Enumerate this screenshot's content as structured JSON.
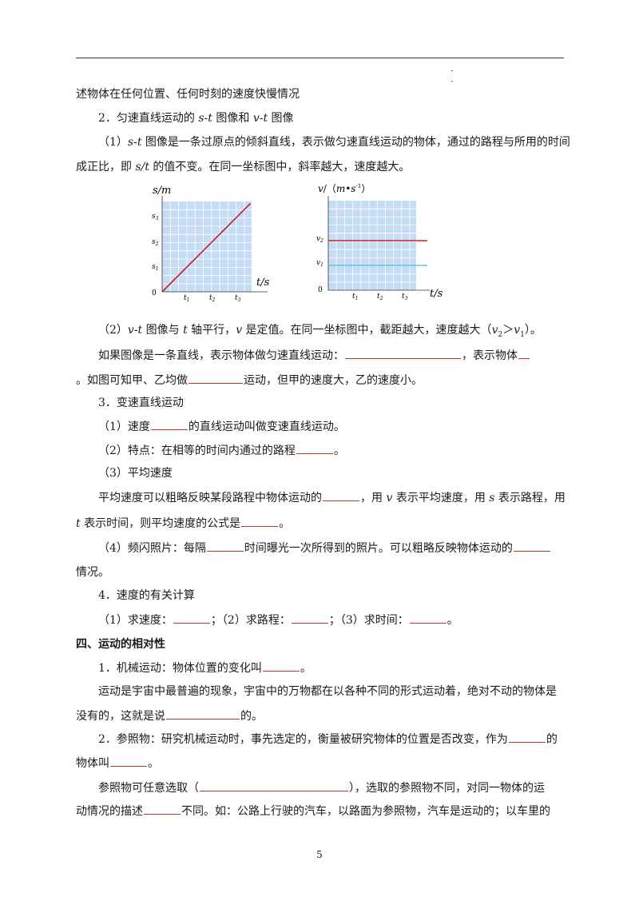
{
  "lines": {
    "l1": "述物体在任何位置、任何时刻的速度快慢情况",
    "l2a": "2．匀速直线运动的 ",
    "l2b": "s-t",
    "l2c": " 图像和 ",
    "l2d": "v-t",
    "l2e": " 图像",
    "l3a": "（1）",
    "l3b": "s-t",
    "l3c": " 图像是一条过原点的倾斜直线，表示做匀速直线运动的物体，通过的路程与所用的时间",
    "l4a": "成正比，即 ",
    "l4b": "s/t",
    "l4c": " 的值不变。在同一坐标图中，斜率越大，速度越大。",
    "l5a": "（2）",
    "l5b": "v-t",
    "l5c": " 图像与 ",
    "l5d": "t",
    "l5e": " 轴平行，",
    "l5f": "v",
    "l5g": " 是定值。在同一坐标图中，截距越大，速度越大（",
    "l5h": "v",
    "l5i": "2",
    "l5j": "＞",
    "l5k": "v",
    "l5l": "1",
    "l5m": "）。",
    "l6a": "如果图像是一条直线，表示物体做匀速直线运动：",
    "l6b": "，表示物体",
    "l7a": "。如图可知甲、乙均做",
    "l7b": "运动，但甲的速度大，乙的速度小。",
    "l8": "3．变速直线运动",
    "l9a": "（1）速度",
    "l9b": "的直线运动叫做变速直线运动。",
    "l10a": "（2）特点：在相等的时间内通过的路程",
    "l10b": "。",
    "l11": "（3）平均速度",
    "l12a": "平均速度可以粗略反映某段路程中物体运动的",
    "l12b": "，用 ",
    "l12c": "v",
    "l12d": " 表示平均速度，用 ",
    "l12e": "s",
    "l12f": " 表示路程，用",
    "l13a": "t",
    "l13b": " 表示时间，则平均速度的公式是",
    "l13c": "。",
    "l14a": "（4）频闪照片：每隔",
    "l14b": "时间曝光一次所得到的照片。可以粗略反映物体运动的",
    "l15": "情况。",
    "l16": "4．速度的有关计算",
    "l17a": "（1）求速度：",
    "l17b": "；（2）求路程：",
    "l17c": "；（3）求时间：",
    "l17d": "。",
    "l18": "四、运动的相对性",
    "l19a": "1．机械运动：物体位置的变化叫",
    "l19b": "。",
    "l20": "运动是宇宙中最普遍的现象，宇宙中的万物都在以各种不同的形式运动着，绝对不动的物体是",
    "l21a": "没有的，这就是说",
    "l21b": "的。",
    "l22a": "2．参照物：研究机械运动时，事先选定的，衡量被研究物体的位置是否改变，作为",
    "l22b": "的",
    "l23a": "物体叫",
    "l23b": "。",
    "l24a": "参照物可任意选取（",
    "l24b": "），选取的参照物不同，对同一物体的运",
    "l25a": "动情况的描述",
    "l25b": "不同。如：公路上行驶的汽车，以路面为参照物，汽车是运动的；以车里的"
  },
  "page_number": "5",
  "chart_data": [
    {
      "type": "line",
      "ylabel": "s/m",
      "xlabel": "t/s",
      "origin_label": "0",
      "x_ticks": [
        "t1",
        "t2",
        "t3"
      ],
      "y_ticks": [
        "s1",
        "s2",
        "s3"
      ],
      "series": [
        {
          "values": [
            [
              0,
              0
            ],
            [
              3.5,
              3.5
            ]
          ]
        }
      ],
      "line_color": "#c8201e",
      "plot_bg": "#c6dcf5",
      "grid": true
    },
    {
      "type": "line",
      "ylabel": "v/（m•s⁻¹）",
      "xlabel": "t/s",
      "origin_label": "0",
      "x_ticks": [
        "t1",
        "t2",
        "t3"
      ],
      "y_ticks": [
        "v1",
        "v2"
      ],
      "series": [
        {
          "values": [
            [
              0,
              2
            ],
            [
              4,
              2
            ]
          ],
          "color": "#c8201e"
        },
        {
          "values": [
            [
              0,
              1
            ],
            [
              4,
              1
            ]
          ],
          "color": "#41b7d8"
        }
      ],
      "plot_bg": "#c6dcf5",
      "grid": true
    }
  ],
  "colors": {
    "blank_underline": "#c2332e",
    "text": "#1a1a1a"
  }
}
